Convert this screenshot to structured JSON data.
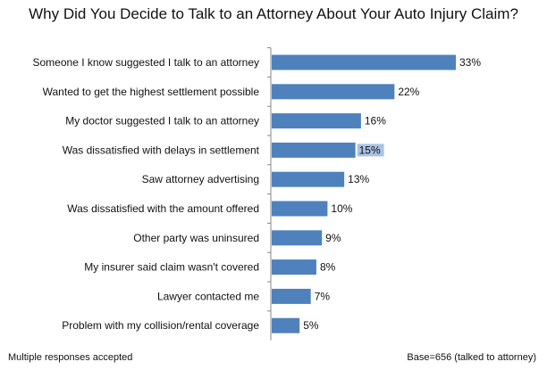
{
  "chart_data": {
    "type": "bar",
    "orientation": "horizontal",
    "title": "Why Did You Decide to Talk to an Attorney About Your Auto Injury Claim?",
    "categories": [
      "Someone I know suggested I talk to an attorney",
      "Wanted to get the highest settlement possible",
      "My doctor suggested I talk to an attorney",
      "Was dissatisfied with delays in settlement",
      "Saw attorney advertising",
      "Was dissatisfied with the amount offered",
      "Other party was uninsured",
      "My insurer said claim wasn't covered",
      "Lawyer contacted me",
      "Problem with my collision/rental coverage"
    ],
    "values": [
      33,
      22,
      16,
      15,
      13,
      10,
      9,
      8,
      7,
      5
    ],
    "value_labels": [
      "33%",
      "22%",
      "16%",
      "15%",
      "13%",
      "10%",
      "9%",
      "8%",
      "7%",
      "5%"
    ],
    "highlighted_label_index": 3,
    "xlim": [
      0,
      33
    ],
    "grid": false,
    "legend": "none",
    "colors": {
      "bar": "#4f81bd",
      "highlight": "#a9c3e3",
      "axis": "#888888"
    }
  },
  "footnotes": {
    "left": "Multiple responses accepted",
    "right": "Base=656 (talked to attorney)"
  }
}
